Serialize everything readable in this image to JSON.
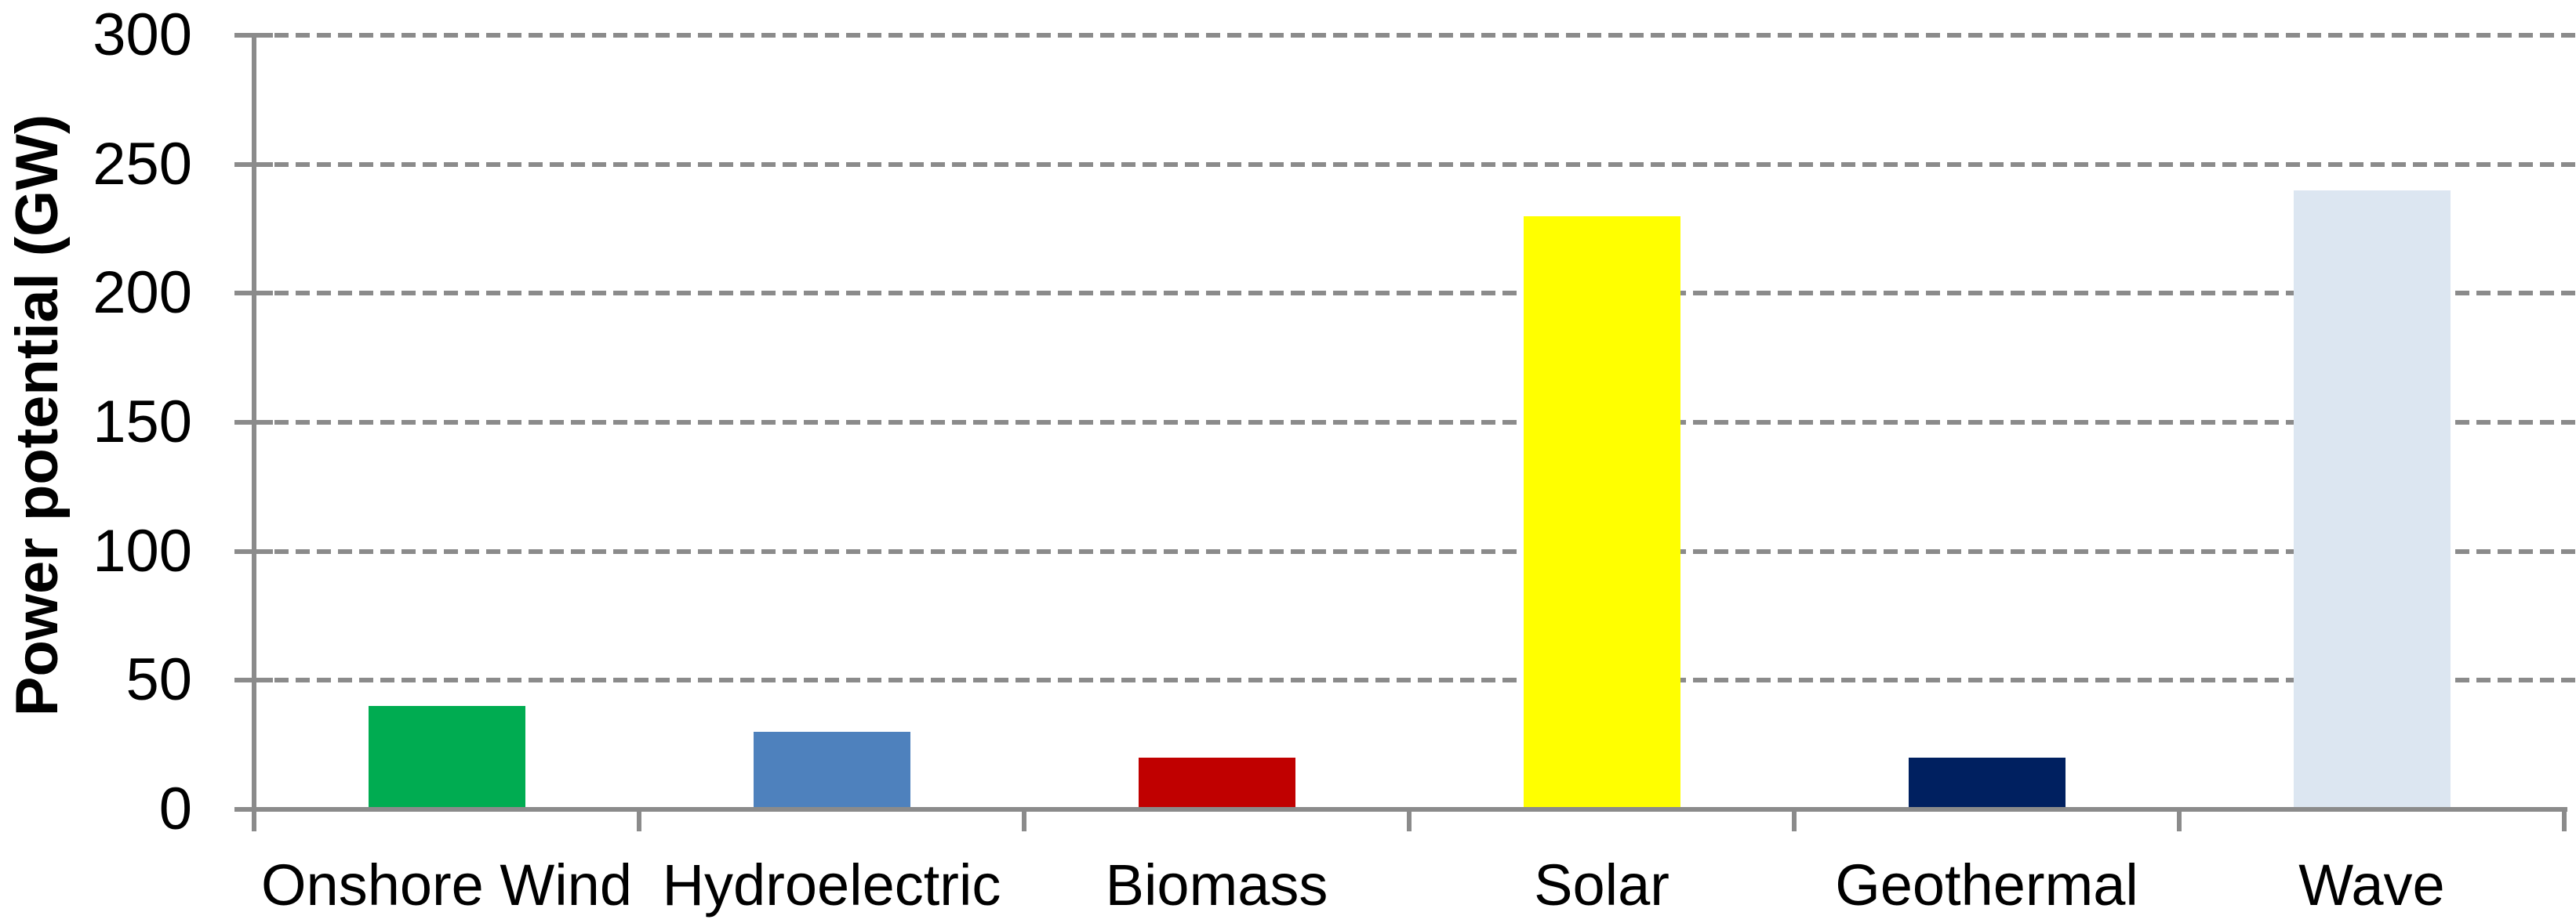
{
  "chart_data": {
    "type": "bar",
    "title": "",
    "ylabel": "Power potential (GW)",
    "xlabel": "",
    "categories": [
      "Onshore Wind",
      "Hydroelectric",
      "Biomass",
      "Solar",
      "Geothermal",
      "Wave"
    ],
    "values": [
      40,
      30,
      20,
      230,
      20,
      240
    ],
    "bar_colors": [
      "#00AC51",
      "#4E81BD",
      "#C00000",
      "#FFFF00",
      "#002060",
      "#DCE6F1"
    ],
    "ylim": [
      0,
      300
    ],
    "yticks": [
      0,
      50,
      100,
      150,
      200,
      250,
      300
    ],
    "ytick_labels": [
      "0",
      "50",
      "100",
      "150",
      "200",
      "250",
      "300"
    ],
    "grid": "horizontal-dashed",
    "legend": "none",
    "colors": {
      "axis": "#8B8B8B",
      "gridline": "#8B8B8B",
      "text": "#000000",
      "background": "#FFFFFF"
    }
  }
}
